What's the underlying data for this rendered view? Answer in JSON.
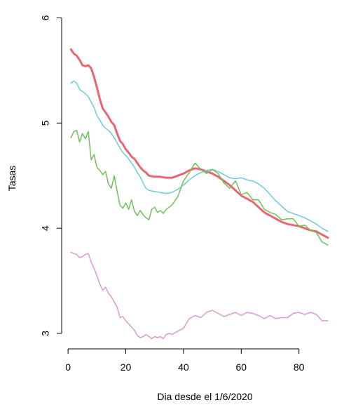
{
  "chart_data": {
    "type": "line",
    "title": "",
    "xlabel": "Dia desde el 1/6/2020",
    "ylabel": "Tasas",
    "xlim": [
      -1,
      91
    ],
    "ylim": [
      2.9,
      6.05
    ],
    "x_ticks": [
      "0",
      "20",
      "40",
      "60",
      "80"
    ],
    "y_ticks": [
      "3",
      "4",
      "5",
      "6"
    ],
    "grid": false,
    "legend": "none",
    "series": [
      {
        "color": "#e8666f",
        "emphasis": "thick",
        "points": [
          [
            1,
            5.7
          ],
          [
            2,
            5.66
          ],
          [
            3,
            5.64
          ],
          [
            4,
            5.6
          ],
          [
            5,
            5.55
          ],
          [
            6,
            5.54
          ],
          [
            7,
            5.55
          ],
          [
            8,
            5.52
          ],
          [
            9,
            5.44
          ],
          [
            10,
            5.34
          ],
          [
            11,
            5.23
          ],
          [
            12,
            5.14
          ],
          [
            13,
            5.1
          ],
          [
            14,
            5.06
          ],
          [
            15,
            5.01
          ],
          [
            16,
            4.98
          ],
          [
            17,
            4.9
          ],
          [
            18,
            4.83
          ],
          [
            19,
            4.8
          ],
          [
            20,
            4.75
          ],
          [
            21,
            4.72
          ],
          [
            22,
            4.68
          ],
          [
            23,
            4.66
          ],
          [
            24,
            4.62
          ],
          [
            25,
            4.58
          ],
          [
            26,
            4.55
          ],
          [
            27,
            4.53
          ],
          [
            28,
            4.5
          ],
          [
            30,
            4.49
          ],
          [
            32,
            4.49
          ],
          [
            34,
            4.48
          ],
          [
            36,
            4.48
          ],
          [
            38,
            4.5
          ],
          [
            40,
            4.52
          ],
          [
            42,
            4.55
          ],
          [
            44,
            4.57
          ],
          [
            46,
            4.56
          ],
          [
            48,
            4.54
          ],
          [
            50,
            4.52
          ],
          [
            52,
            4.49
          ],
          [
            54,
            4.45
          ],
          [
            56,
            4.41
          ],
          [
            58,
            4.36
          ],
          [
            60,
            4.31
          ],
          [
            62,
            4.28
          ],
          [
            64,
            4.25
          ],
          [
            66,
            4.2
          ],
          [
            68,
            4.15
          ],
          [
            70,
            4.12
          ],
          [
            72,
            4.09
          ],
          [
            74,
            4.06
          ],
          [
            76,
            4.04
          ],
          [
            78,
            4.03
          ],
          [
            80,
            4.02
          ],
          [
            82,
            4.0
          ],
          [
            84,
            3.98
          ],
          [
            86,
            3.97
          ],
          [
            88,
            3.94
          ],
          [
            90,
            3.91
          ]
        ]
      },
      {
        "color": "#6ecbd8",
        "emphasis": "normal",
        "points": [
          [
            1,
            5.38
          ],
          [
            2,
            5.4
          ],
          [
            3,
            5.38
          ],
          [
            4,
            5.32
          ],
          [
            5,
            5.3
          ],
          [
            6,
            5.28
          ],
          [
            7,
            5.25
          ],
          [
            8,
            5.2
          ],
          [
            9,
            5.15
          ],
          [
            10,
            5.07
          ],
          [
            11,
            5.03
          ],
          [
            12,
            4.98
          ],
          [
            13,
            4.95
          ],
          [
            14,
            4.93
          ],
          [
            15,
            4.9
          ],
          [
            16,
            4.86
          ],
          [
            17,
            4.81
          ],
          [
            18,
            4.76
          ],
          [
            19,
            4.72
          ],
          [
            20,
            4.69
          ],
          [
            21,
            4.66
          ],
          [
            22,
            4.62
          ],
          [
            23,
            4.58
          ],
          [
            24,
            4.53
          ],
          [
            25,
            4.49
          ],
          [
            26,
            4.43
          ],
          [
            27,
            4.38
          ],
          [
            28,
            4.36
          ],
          [
            30,
            4.35
          ],
          [
            32,
            4.34
          ],
          [
            34,
            4.33
          ],
          [
            36,
            4.34
          ],
          [
            38,
            4.37
          ],
          [
            40,
            4.41
          ],
          [
            42,
            4.46
          ],
          [
            44,
            4.5
          ],
          [
            46,
            4.53
          ],
          [
            48,
            4.55
          ],
          [
            50,
            4.56
          ],
          [
            52,
            4.54
          ],
          [
            54,
            4.51
          ],
          [
            56,
            4.48
          ],
          [
            58,
            4.47
          ],
          [
            60,
            4.48
          ],
          [
            62,
            4.46
          ],
          [
            64,
            4.45
          ],
          [
            66,
            4.42
          ],
          [
            68,
            4.38
          ],
          [
            70,
            4.32
          ],
          [
            72,
            4.26
          ],
          [
            74,
            4.21
          ],
          [
            76,
            4.16
          ],
          [
            78,
            4.14
          ],
          [
            80,
            4.12
          ],
          [
            82,
            4.1
          ],
          [
            84,
            4.07
          ],
          [
            86,
            4.04
          ],
          [
            88,
            4.0
          ],
          [
            90,
            3.97
          ]
        ]
      },
      {
        "color": "#72bf5d",
        "emphasis": "normal",
        "points": [
          [
            1,
            4.86
          ],
          [
            2,
            4.92
          ],
          [
            3,
            4.93
          ],
          [
            4,
            4.82
          ],
          [
            5,
            4.9
          ],
          [
            6,
            4.85
          ],
          [
            7,
            4.92
          ],
          [
            8,
            4.65
          ],
          [
            9,
            4.7
          ],
          [
            10,
            4.58
          ],
          [
            11,
            4.55
          ],
          [
            12,
            4.51
          ],
          [
            13,
            4.54
          ],
          [
            14,
            4.42
          ],
          [
            15,
            4.38
          ],
          [
            16,
            4.5
          ],
          [
            17,
            4.35
          ],
          [
            18,
            4.22
          ],
          [
            19,
            4.19
          ],
          [
            20,
            4.24
          ],
          [
            21,
            4.18
          ],
          [
            22,
            4.27
          ],
          [
            23,
            4.16
          ],
          [
            24,
            4.12
          ],
          [
            25,
            4.17
          ],
          [
            26,
            4.13
          ],
          [
            27,
            4.1
          ],
          [
            28,
            4.08
          ],
          [
            29,
            4.18
          ],
          [
            30,
            4.2
          ],
          [
            31,
            4.15
          ],
          [
            32,
            4.17
          ],
          [
            33,
            4.14
          ],
          [
            34,
            4.18
          ],
          [
            36,
            4.22
          ],
          [
            38,
            4.3
          ],
          [
            40,
            4.45
          ],
          [
            42,
            4.53
          ],
          [
            44,
            4.62
          ],
          [
            46,
            4.56
          ],
          [
            48,
            4.52
          ],
          [
            50,
            4.56
          ],
          [
            52,
            4.52
          ],
          [
            54,
            4.43
          ],
          [
            56,
            4.38
          ],
          [
            58,
            4.45
          ],
          [
            60,
            4.32
          ],
          [
            62,
            4.34
          ],
          [
            64,
            4.27
          ],
          [
            66,
            4.27
          ],
          [
            68,
            4.18
          ],
          [
            70,
            4.15
          ],
          [
            72,
            4.13
          ],
          [
            74,
            4.08
          ],
          [
            76,
            4.09
          ],
          [
            78,
            4.09
          ],
          [
            80,
            4.02
          ],
          [
            82,
            4.03
          ],
          [
            84,
            3.98
          ],
          [
            86,
            3.96
          ],
          [
            88,
            3.87
          ],
          [
            90,
            3.84
          ]
        ]
      },
      {
        "color": "#d99ad4",
        "emphasis": "normal",
        "points": [
          [
            1,
            3.77
          ],
          [
            2,
            3.76
          ],
          [
            3,
            3.75
          ],
          [
            4,
            3.72
          ],
          [
            5,
            3.73
          ],
          [
            6,
            3.75
          ],
          [
            7,
            3.76
          ],
          [
            8,
            3.68
          ],
          [
            9,
            3.62
          ],
          [
            10,
            3.55
          ],
          [
            11,
            3.47
          ],
          [
            12,
            3.41
          ],
          [
            13,
            3.44
          ],
          [
            14,
            3.38
          ],
          [
            15,
            3.35
          ],
          [
            16,
            3.3
          ],
          [
            17,
            3.25
          ],
          [
            18,
            3.15
          ],
          [
            19,
            3.16
          ],
          [
            20,
            3.12
          ],
          [
            21,
            3.09
          ],
          [
            22,
            3.06
          ],
          [
            23,
            3.03
          ],
          [
            24,
            2.98
          ],
          [
            25,
            2.96
          ],
          [
            26,
            2.97
          ],
          [
            27,
            2.99
          ],
          [
            28,
            2.97
          ],
          [
            29,
            2.95
          ],
          [
            30,
            2.97
          ],
          [
            31,
            2.96
          ],
          [
            32,
            2.97
          ],
          [
            33,
            2.95
          ],
          [
            34,
            2.99
          ],
          [
            35,
            3.0
          ],
          [
            36,
            2.99
          ],
          [
            38,
            3.02
          ],
          [
            40,
            3.05
          ],
          [
            42,
            3.14
          ],
          [
            44,
            3.17
          ],
          [
            46,
            3.15
          ],
          [
            48,
            3.2
          ],
          [
            50,
            3.22
          ],
          [
            52,
            3.19
          ],
          [
            54,
            3.16
          ],
          [
            56,
            3.18
          ],
          [
            58,
            3.2
          ],
          [
            60,
            3.17
          ],
          [
            62,
            3.2
          ],
          [
            64,
            3.19
          ],
          [
            66,
            3.17
          ],
          [
            68,
            3.14
          ],
          [
            70,
            3.17
          ],
          [
            72,
            3.14
          ],
          [
            74,
            3.15
          ],
          [
            76,
            3.15
          ],
          [
            78,
            3.19
          ],
          [
            80,
            3.2
          ],
          [
            82,
            3.18
          ],
          [
            84,
            3.2
          ],
          [
            86,
            3.18
          ],
          [
            88,
            3.12
          ],
          [
            90,
            3.12
          ]
        ]
      }
    ]
  }
}
